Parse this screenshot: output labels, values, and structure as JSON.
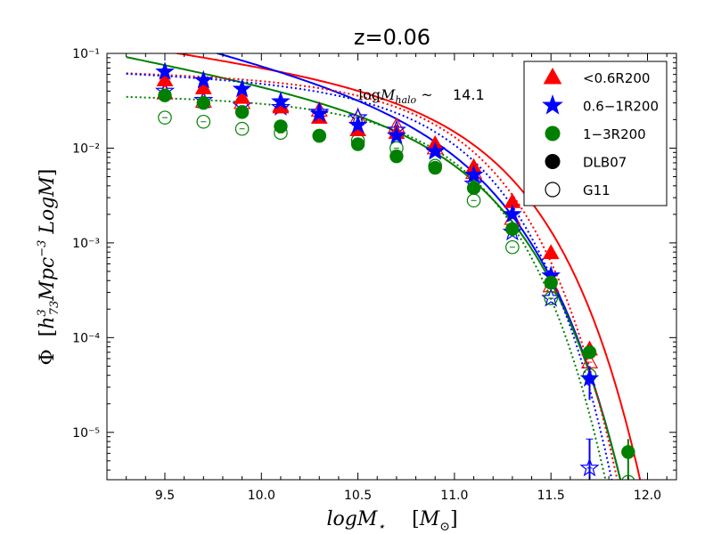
{
  "chart_data": {
    "type": "scatter",
    "title": "z=0.06",
    "xlabel": "logM⋆    [M⊙]",
    "ylabel": "Φ  [h³₇₃ Mpc⁻³ LogM]",
    "annotation": {
      "text_math": "logM_halo ~",
      "value": "14.1"
    },
    "xlim": [
      9.2,
      12.15
    ],
    "ylim_log10": [
      -5.5,
      -1.0
    ],
    "y_scale": "log",
    "xticks": [
      9.5,
      10.0,
      10.5,
      11.0,
      11.5,
      12.0
    ],
    "xtick_labels": [
      "9.5",
      "10.0",
      "10.5",
      "11.0",
      "11.5",
      "12.0"
    ],
    "yticks_log10": [
      -5,
      -4,
      -3,
      -2,
      -1
    ],
    "ytick_labels": [
      "10⁻⁵",
      "10⁻⁴",
      "10⁻³",
      "10⁻²",
      "10⁻¹"
    ],
    "legend": {
      "position": "top-right",
      "entries": [
        {
          "marker": "triangle",
          "label": "<0.6R200",
          "color": "#ff0000"
        },
        {
          "marker": "star",
          "label": "0.6−1R200",
          "color": "#0000ff"
        },
        {
          "marker": "circle",
          "label": "1−3R200",
          "color": "#008000"
        },
        {
          "marker": "circle-filled",
          "label": "DLB07",
          "color": "#000000"
        },
        {
          "marker": "circle-open",
          "label": "G11",
          "color": "#000000"
        }
      ]
    },
    "series": [
      {
        "name": "<0.6R200 DLB07",
        "color": "#ff0000",
        "marker": "triangle",
        "filled": true,
        "x": [
          9.5,
          9.7,
          9.9,
          10.1,
          10.3,
          10.5,
          10.7,
          10.9,
          11.1,
          11.3,
          11.5,
          11.7
        ],
        "y": [
          0.052,
          0.043,
          0.034,
          0.027,
          0.021,
          0.0155,
          0.0145,
          0.011,
          0.0063,
          0.0027,
          0.00078,
          7.5e-05
        ]
      },
      {
        "name": "0.6-1R200 DLB07",
        "color": "#0000ff",
        "marker": "star",
        "filled": true,
        "x": [
          9.5,
          9.7,
          9.9,
          10.1,
          10.3,
          10.5,
          10.7,
          10.9,
          11.1,
          11.3,
          11.5,
          11.7
        ],
        "y": [
          0.064,
          0.052,
          0.042,
          0.031,
          0.023,
          0.0175,
          0.0135,
          0.0092,
          0.0052,
          0.002,
          0.00045,
          3.7e-05
        ]
      },
      {
        "name": "1-3R200 DLB07",
        "color": "#008000",
        "marker": "circle",
        "filled": true,
        "x": [
          9.5,
          9.7,
          9.9,
          10.1,
          10.3,
          10.5,
          10.7,
          10.9,
          11.1,
          11.3,
          11.5,
          11.7,
          11.9
        ],
        "y": [
          0.036,
          0.03,
          0.024,
          0.017,
          0.0135,
          0.011,
          0.0082,
          0.0062,
          0.0038,
          0.0014,
          0.00038,
          7e-05,
          6.2e-06
        ]
      },
      {
        "name": "<0.6R200 G11",
        "color": "#ff0000",
        "marker": "triangle",
        "filled": false,
        "x": [
          9.5,
          9.7,
          9.9,
          10.1,
          10.3,
          10.5,
          10.7,
          10.9,
          11.1,
          11.3,
          11.5,
          11.7
        ],
        "y": [
          0.038,
          0.031,
          0.03,
          0.028,
          0.025,
          0.021,
          0.017,
          0.01,
          0.0055,
          0.0018,
          0.00035,
          5.5e-05
        ]
      },
      {
        "name": "0.6-1R200 G11",
        "color": "#0000ff",
        "marker": "star",
        "filled": false,
        "x": [
          9.5,
          9.7,
          9.9,
          10.1,
          10.3,
          10.5,
          10.7,
          10.9,
          11.1,
          11.3,
          11.5,
          11.7
        ],
        "y": [
          0.04,
          0.032,
          0.028,
          0.027,
          0.024,
          0.021,
          0.0155,
          0.0095,
          0.0042,
          0.0013,
          0.00026,
          4.2e-06
        ]
      },
      {
        "name": "1-3R200 G11",
        "color": "#008000",
        "marker": "circle",
        "filled": false,
        "x": [
          9.5,
          9.7,
          9.9,
          10.1,
          10.3,
          10.5,
          10.7,
          10.9,
          11.1,
          11.3,
          11.5,
          11.7,
          11.9
        ],
        "y": [
          0.021,
          0.019,
          0.016,
          0.0145,
          0.0135,
          0.012,
          0.01,
          0.0065,
          0.0028,
          0.0009,
          0.00026,
          4e-05,
          3e-06
        ]
      }
    ],
    "fits": [
      {
        "name": "<0.6R200 DLB07 fit",
        "color": "#ff0000",
        "style": "solid",
        "phi_star": 0.0165,
        "alpha": -1.3,
        "log_mstar": 11.02
      },
      {
        "name": "0.6-1R200 DLB07 fit",
        "color": "#0000ff",
        "style": "solid",
        "phi_star": 0.0112,
        "alpha": -1.52,
        "log_mstar": 10.96
      },
      {
        "name": "1-3R200 DLB07 fit",
        "color": "#008000",
        "style": "solid",
        "phi_star": 0.0088,
        "alpha": -1.4,
        "log_mstar": 10.96
      },
      {
        "name": "<0.6R200 G11 fit",
        "color": "#ff0000",
        "style": "dotted",
        "phi_star": 0.023,
        "alpha": -1.05,
        "log_mstar": 10.86
      },
      {
        "name": "0.6-1R200 G11 fit",
        "color": "#0000ff",
        "style": "dotted",
        "phi_star": 0.0205,
        "alpha": -1.08,
        "log_mstar": 10.84
      },
      {
        "name": "1-3R200 G11 fit",
        "color": "#008000",
        "style": "dotted",
        "phi_star": 0.014,
        "alpha": -1.03,
        "log_mstar": 10.82
      }
    ]
  }
}
